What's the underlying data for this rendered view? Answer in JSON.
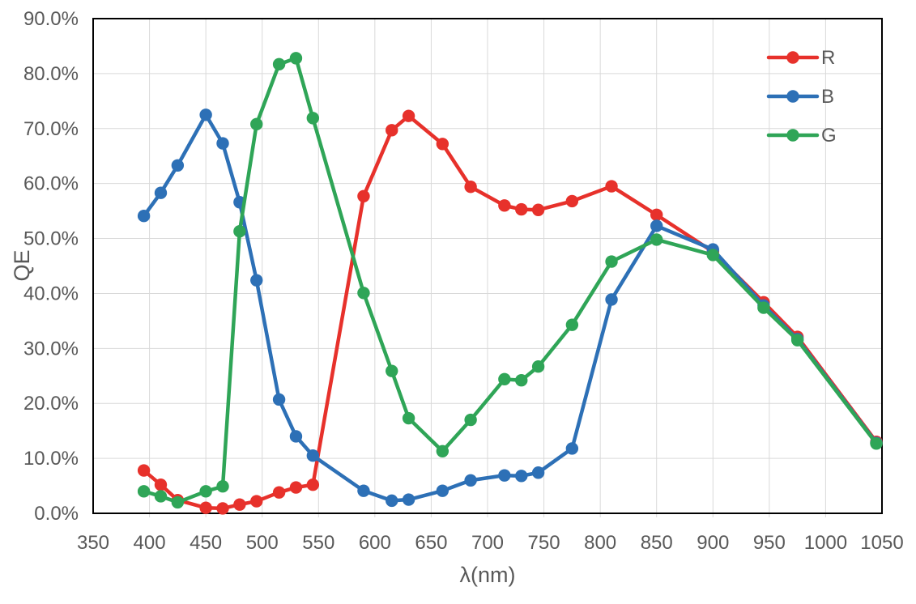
{
  "chart_data": {
    "type": "line",
    "title": "",
    "xlabel": "λ(nm)",
    "ylabel": "QE",
    "xlim": [
      350,
      1050
    ],
    "ylim": [
      0,
      90
    ],
    "grid": true,
    "legend_position": "top-right",
    "x_ticks": [
      350,
      400,
      450,
      500,
      550,
      600,
      650,
      700,
      750,
      800,
      850,
      900,
      950,
      1000,
      1050
    ],
    "x_tick_labels": [
      "350",
      "400",
      "450",
      "500",
      "550",
      "600",
      "650",
      "700",
      "750",
      "800",
      "850",
      "900",
      "950",
      "1000",
      "1050"
    ],
    "y_ticks": [
      0,
      10,
      20,
      30,
      40,
      50,
      60,
      70,
      80,
      90
    ],
    "y_tick_labels": [
      "0.0%",
      "10.0%",
      "20.0%",
      "30.0%",
      "40.0%",
      "50.0%",
      "60.0%",
      "70.0%",
      "80.0%",
      "90.0%"
    ],
    "x": [
      395,
      410,
      425,
      450,
      465,
      480,
      495,
      515,
      530,
      545,
      590,
      615,
      630,
      660,
      685,
      715,
      730,
      745,
      775,
      810,
      850,
      900,
      945,
      975,
      1045
    ],
    "series": [
      {
        "name": "R",
        "color": "#E7312B",
        "values": [
          7.8,
          5.2,
          2.4,
          1.0,
          0.9,
          1.6,
          2.2,
          3.8,
          4.7,
          5.2,
          57.7,
          69.7,
          72.3,
          67.2,
          59.4,
          56.0,
          55.3,
          55.2,
          56.8,
          59.5,
          54.3,
          47.6,
          38.4,
          32.1,
          13.0
        ]
      },
      {
        "name": "B",
        "color": "#2D70B6",
        "values": [
          54.1,
          58.3,
          63.3,
          72.5,
          67.3,
          56.6,
          42.4,
          20.7,
          14.0,
          10.5,
          4.1,
          2.3,
          2.5,
          4.1,
          6.0,
          6.9,
          6.8,
          7.4,
          11.8,
          38.9,
          52.3,
          48.0,
          37.8,
          31.7,
          12.8
        ]
      },
      {
        "name": "G",
        "color": "#2FA557",
        "values": [
          4.0,
          3.1,
          2.0,
          4.0,
          4.9,
          51.3,
          70.8,
          81.7,
          82.8,
          71.9,
          40.1,
          25.9,
          17.3,
          11.3,
          17.0,
          24.4,
          24.2,
          26.7,
          34.3,
          45.8,
          49.8,
          47.0,
          37.4,
          31.5,
          12.7
        ]
      }
    ],
    "colors": {
      "grid": "#D9D9D9",
      "axis_border": "#000000",
      "text": "#595959"
    }
  }
}
